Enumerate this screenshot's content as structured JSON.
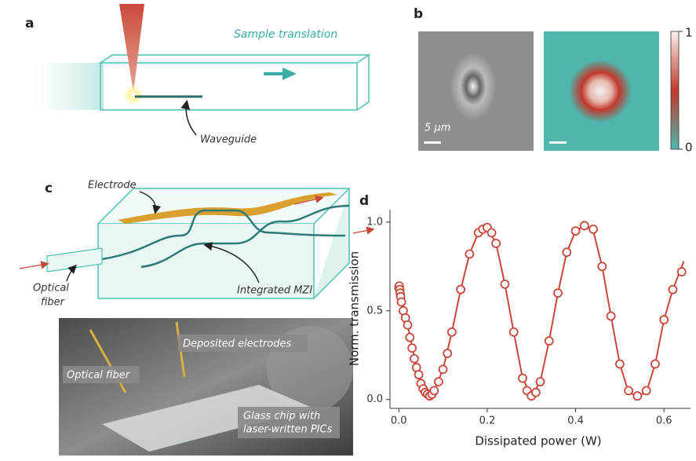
{
  "panel_labels": [
    "a",
    "b",
    "c",
    "d"
  ],
  "panel_a": {
    "sample_translation": "Sample translation",
    "waveguide": "Waveguide"
  },
  "panel_b": {
    "scale_bar": "5 μm",
    "colorbar_ticks": [
      1,
      0
    ]
  },
  "panel_c": {
    "electrode": "Electrode",
    "optical_fiber": [
      "Optical",
      "fiber"
    ],
    "integrated_mzi": "Integrated MZI",
    "photo_labels": {
      "deposited_electrodes": "Deposited electrodes",
      "optical_fiber": "Optical fiber",
      "glass_chip": [
        "Glass chip with",
        "laser-written PICs"
      ]
    }
  },
  "chart_data": {
    "type": "line",
    "xlabel": "Dissipated power (W)",
    "ylabel": "Norm. transmission",
    "xlim": [
      -0.02,
      0.66
    ],
    "ylim": [
      -0.05,
      1.07
    ],
    "xticks": [
      {
        "value": 0,
        "label": "0.0"
      },
      {
        "value": 0.2,
        "label": "0.2"
      },
      {
        "value": 0.4,
        "label": "0.4"
      },
      {
        "value": 0.6,
        "label": "0.6"
      }
    ],
    "yticks": [
      {
        "value": 0,
        "label": "0.0"
      },
      {
        "value": 0.5,
        "label": "0.5"
      },
      {
        "value": 1,
        "label": "1.0"
      }
    ],
    "series": [
      {
        "style": "markers",
        "color": "#c8473a",
        "x": [
          0,
          0.001,
          0.002,
          0.003,
          0.004,
          0.006,
          0.01,
          0.015,
          0.02,
          0.025,
          0.03,
          0.035,
          0.04,
          0.045,
          0.05,
          0.055,
          0.06,
          0.065,
          0.07,
          0.075,
          0.08,
          0.09,
          0.1,
          0.11,
          0.12,
          0.14,
          0.16,
          0.18,
          0.19,
          0.2,
          0.21,
          0.22,
          0.24,
          0.26,
          0.28,
          0.29,
          0.3,
          0.31,
          0.32,
          0.34,
          0.36,
          0.38,
          0.4,
          0.42,
          0.44,
          0.46,
          0.48,
          0.5,
          0.52,
          0.54,
          0.56,
          0.58,
          0.6,
          0.62,
          0.64
        ],
        "values": [
          0.63,
          0.64,
          0.62,
          0.6,
          0.58,
          0.55,
          0.5,
          0.46,
          0.42,
          0.35,
          0.29,
          0.23,
          0.18,
          0.14,
          0.09,
          0.06,
          0.04,
          0.03,
          0.02,
          0.03,
          0.05,
          0.1,
          0.17,
          0.26,
          0.38,
          0.62,
          0.82,
          0.94,
          0.96,
          0.97,
          0.94,
          0.88,
          0.65,
          0.38,
          0.12,
          0.05,
          0.02,
          0.04,
          0.1,
          0.33,
          0.6,
          0.83,
          0.95,
          0.98,
          0.96,
          0.75,
          0.47,
          0.2,
          0.05,
          0.02,
          0.05,
          0.2,
          0.45,
          0.62,
          0.72
        ]
      },
      {
        "style": "line",
        "color": "#c8473a",
        "x": [
          0,
          0.02,
          0.04,
          0.06,
          0.07,
          0.08,
          0.1,
          0.12,
          0.14,
          0.16,
          0.18,
          0.2,
          0.22,
          0.24,
          0.26,
          0.28,
          0.3,
          0.32,
          0.34,
          0.36,
          0.38,
          0.4,
          0.42,
          0.44,
          0.46,
          0.48,
          0.5,
          0.52,
          0.54,
          0.56,
          0.58,
          0.6,
          0.62,
          0.645
        ],
        "values": [
          0.64,
          0.42,
          0.18,
          0.04,
          0.02,
          0.05,
          0.17,
          0.38,
          0.62,
          0.82,
          0.94,
          0.97,
          0.88,
          0.65,
          0.38,
          0.12,
          0.02,
          0.1,
          0.33,
          0.6,
          0.83,
          0.95,
          0.98,
          0.95,
          0.75,
          0.47,
          0.2,
          0.04,
          0.02,
          0.04,
          0.2,
          0.45,
          0.62,
          0.78
        ]
      }
    ]
  }
}
